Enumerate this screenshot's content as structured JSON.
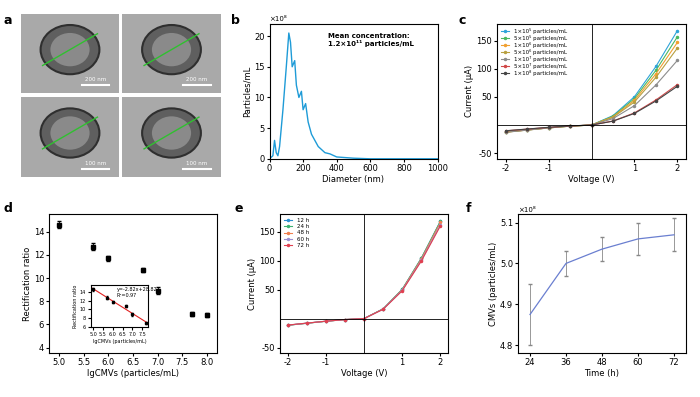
{
  "chart_data": [
    {
      "type": "image",
      "panel": "a",
      "scale_bars": [
        "200 nm",
        "200 nm",
        "100 nm",
        "100 nm"
      ]
    },
    {
      "type": "line",
      "panel": "b",
      "x": [
        0,
        20,
        30,
        40,
        50,
        60,
        80,
        100,
        115,
        125,
        135,
        150,
        160,
        175,
        190,
        200,
        215,
        230,
        250,
        270,
        290,
        310,
        330,
        360,
        400,
        450,
        500,
        600,
        1000
      ],
      "values": [
        0,
        0.5,
        3,
        1,
        0.5,
        2,
        8,
        15,
        20.5,
        19,
        15,
        16,
        12,
        10,
        11,
        8,
        9,
        6,
        4,
        3,
        2,
        1.5,
        1,
        0.8,
        0.3,
        0.2,
        0.1,
        0,
        0
      ],
      "color": "#1e9bd7",
      "x_label": "Diameter (nm)",
      "y_label": "Particles/mL",
      "y_multiplier": "×10⁸",
      "annotation": "Mean concentration:\n1.2×10¹¹ particles/mL",
      "xlim": [
        0,
        1000
      ],
      "xticks": [
        0,
        200,
        400,
        600,
        800,
        1000
      ],
      "ylim": [
        0,
        22
      ],
      "yticks": [
        0,
        5,
        10,
        15,
        20
      ]
    },
    {
      "type": "line",
      "panel": "c",
      "marker": "o",
      "line_style": "solid",
      "legend": "upper left",
      "x": [
        -2,
        -1.5,
        -1,
        -0.5,
        0,
        0.5,
        1,
        1.5,
        2
      ],
      "x_label": "Voltage (V)",
      "y_label": "Current (μA)",
      "xlim": [
        -2.2,
        2.2
      ],
      "xticks": [
        -2,
        -1,
        1,
        2
      ],
      "ylim": [
        -60,
        180
      ],
      "yticks": [
        -50,
        50,
        100,
        150
      ],
      "series": [
        {
          "name": "1×10⁵ particles/mL",
          "color": "#2fa4d9",
          "values": [
            -11.5,
            -8.0,
            -4.6,
            -1.7,
            0,
            16.8,
            50.4,
            104.2,
            168
          ]
        },
        {
          "name": "5×10⁵ particles/mL",
          "color": "#4cb860",
          "values": [
            -12.4,
            -8.7,
            -5.0,
            -1.9,
            0,
            15.7,
            47.1,
            97.3,
            157
          ]
        },
        {
          "name": "1×10⁶ particles/mL",
          "color": "#f0a030",
          "values": [
            -12.6,
            -8.8,
            -5.0,
            -1.9,
            0,
            14.7,
            44.1,
            91.1,
            147
          ]
        },
        {
          "name": "5×10⁶ particles/mL",
          "color": "#b8a040",
          "values": [
            -12.8,
            -9.0,
            -5.1,
            -1.9,
            0,
            13.7,
            41.1,
            84.9,
            137
          ]
        },
        {
          "name": "1×10⁷ particles/mL",
          "color": "#8c8c8c",
          "values": [
            -12.9,
            -9.0,
            -5.2,
            -1.9,
            0,
            11.5,
            34.5,
            71.3,
            115
          ]
        },
        {
          "name": "5×10⁷ particles/mL",
          "color": "#d04848",
          "values": [
            -10.4,
            -7.3,
            -4.2,
            -1.6,
            0,
            7.2,
            21.6,
            44.6,
            72
          ]
        },
        {
          "name": "1×10⁸ particles/mL",
          "color": "#444444",
          "values": [
            -10.1,
            -7.1,
            -4.0,
            -1.5,
            0,
            6.9,
            20.7,
            42.8,
            69
          ]
        }
      ]
    },
    {
      "type": "scatter",
      "panel": "d",
      "marker": "s",
      "color": "#000000",
      "x": [
        5.0,
        5.7,
        6.0,
        6.7,
        7.0,
        7.7,
        8.0
      ],
      "values": [
        14.6,
        12.7,
        11.7,
        10.7,
        8.9,
        6.9,
        6.8
      ],
      "errors": [
        0.3,
        0.3,
        0.2,
        0.2,
        0.3,
        0.2,
        0.2
      ],
      "x_label": "lgCMVs (particles/mL)",
      "y_label": "Rectification ratio",
      "xlim": [
        4.8,
        8.2
      ],
      "xticks": [
        5.0,
        5.5,
        6.0,
        6.5,
        7.0,
        7.5,
        8.0
      ],
      "ylim": [
        3.5,
        15.5
      ],
      "yticks": [
        4,
        6,
        8,
        10,
        12,
        14
      ],
      "inset": {
        "type": "scatter",
        "marker": "s",
        "color": "#000000",
        "x": [
          5.0,
          5.7,
          6.0,
          6.7,
          7.0,
          7.7
        ],
        "values": [
          14.6,
          12.7,
          11.7,
          10.7,
          8.9,
          6.9
        ],
        "errors": [
          0.3,
          0.3,
          0.2,
          0.2,
          0.3,
          0.2
        ],
        "fit": {
          "slope": -2.82,
          "intercept": 28.82,
          "color": "#e02020"
        },
        "annotation": "y=-2.82x+28.82\nR²=0.97",
        "x_label": "lgCMVs (particles/mL)",
        "y_label": "Rectification ratio",
        "xlim": [
          4.9,
          7.8
        ],
        "xticks": [
          5.0,
          5.5,
          6.0,
          6.5,
          7.0,
          7.5
        ],
        "ylim": [
          6,
          15.5
        ],
        "yticks": [
          6,
          8,
          10,
          12,
          14
        ]
      }
    },
    {
      "type": "line",
      "panel": "e",
      "marker": "o",
      "line_style": "solid",
      "legend": "upper left",
      "x": [
        -2,
        -1.5,
        -1,
        -0.5,
        0,
        0.5,
        1,
        1.5,
        2
      ],
      "x_label": "Voltage (V)",
      "y_label": "Current (μA)",
      "xlim": [
        -2.2,
        2.2
      ],
      "xticks": [
        -2,
        -1,
        1,
        2
      ],
      "ylim": [
        -60,
        180
      ],
      "yticks": [
        -50,
        50,
        100,
        150
      ],
      "series": [
        {
          "name": "12 h",
          "color": "#2a8fd0",
          "values": [
            -11.5,
            -8.0,
            -4.6,
            -1.7,
            0,
            16.8,
            50.4,
            104.2,
            168
          ]
        },
        {
          "name": "24 h",
          "color": "#3cb371",
          "values": [
            -11.6,
            -8.1,
            -4.6,
            -1.7,
            0,
            16.8,
            50.4,
            104.0,
            168
          ]
        },
        {
          "name": "48 h",
          "color": "#f08050",
          "values": [
            -11.4,
            -8.0,
            -4.6,
            -1.7,
            0,
            16.6,
            49.8,
            102.9,
            166
          ]
        },
        {
          "name": "60 h",
          "color": "#9b8fd0",
          "values": [
            -11.3,
            -7.9,
            -4.5,
            -1.7,
            0,
            16.2,
            48.6,
            100.4,
            162
          ]
        },
        {
          "name": "72 h",
          "color": "#e04050",
          "values": [
            -11.2,
            -7.8,
            -4.5,
            -1.7,
            0,
            16.0,
            48.0,
            99.2,
            160
          ]
        }
      ]
    },
    {
      "type": "line",
      "panel": "f",
      "color": "#6a7fd0",
      "line_style": "solid",
      "x": [
        24,
        36,
        48,
        60,
        72
      ],
      "values": [
        4.875,
        5.0,
        5.035,
        5.06,
        5.07
      ],
      "errors": [
        0.075,
        0.03,
        0.03,
        0.04,
        0.04
      ],
      "x_label": "Time (h)",
      "y_label": "CMVs (particles/mL)",
      "y_multiplier": "×10⁸",
      "xlim": [
        20,
        76
      ],
      "xticks": [
        24,
        36,
        48,
        60,
        72
      ],
      "ylim": [
        4.78,
        5.12
      ],
      "yticks": [
        4.8,
        4.9,
        5.0,
        5.1
      ]
    }
  ]
}
